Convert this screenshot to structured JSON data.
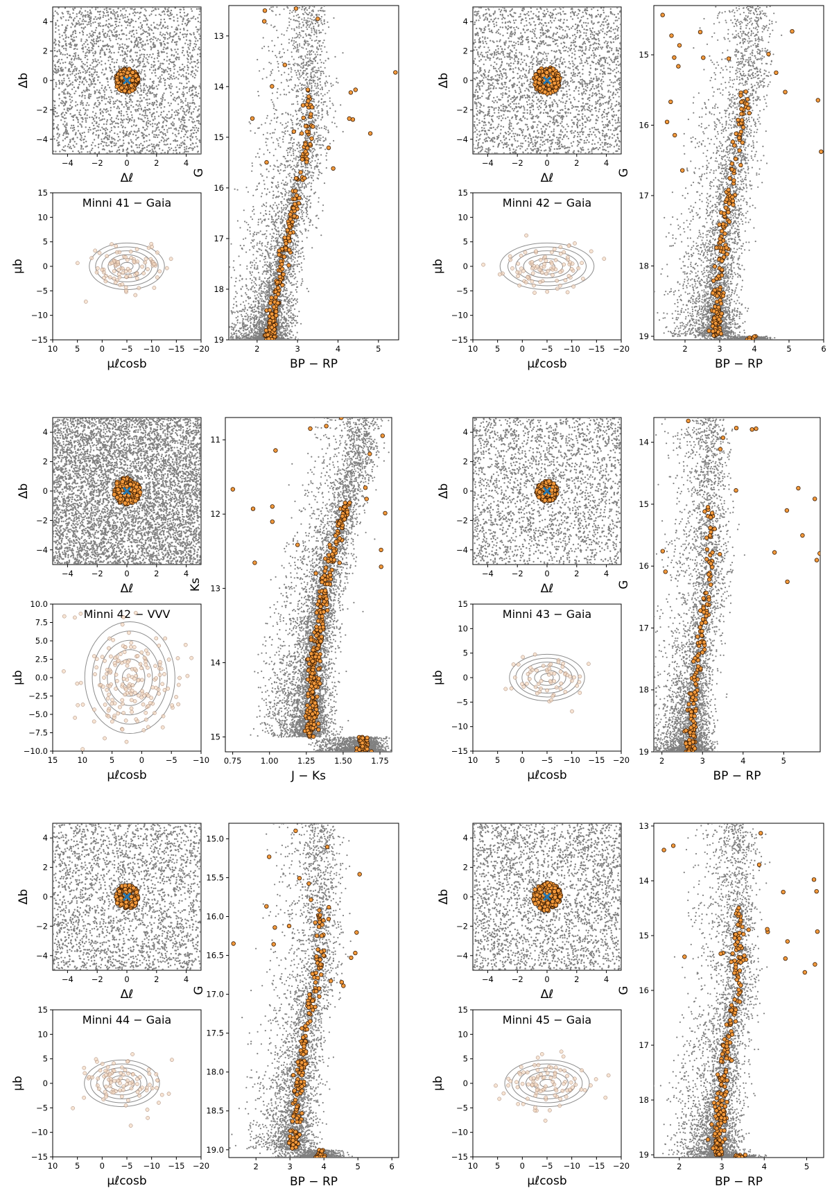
{
  "axis_labels": {
    "dl": "Δℓ",
    "db": "Δb",
    "mul": "μℓcosb",
    "mub": "μb",
    "G": "G",
    "bprp": "BP − RP",
    "Ks": "Ks",
    "jks": "J − Ks"
  },
  "colors": {
    "field_star": "#808080",
    "member_fill": "#f39a3c",
    "member_edge": "#3a1a00",
    "center_marker": "#1f77b4",
    "contour": "#8c8c8c",
    "pm_member_fill": "#f3d9c0",
    "frame": "#000000"
  },
  "chart_data": [
    {
      "id": "minni41",
      "type": "scatter",
      "title": "Minni 41 − Gaia",
      "sky": {
        "xlim": [
          -5,
          5
        ],
        "ylim": [
          -5,
          5
        ],
        "xticks": [
          -4,
          -2,
          0,
          2,
          4
        ],
        "yticks": [
          -4,
          -2,
          0,
          2,
          4
        ],
        "center": [
          0,
          0
        ],
        "cluster_radius": 0.8,
        "density": 2600
      },
      "pm": {
        "xlim": [
          10,
          -20
        ],
        "ylim": [
          -15,
          15
        ],
        "xticks": [
          10,
          5,
          0,
          -5,
          -10,
          -15,
          -20
        ],
        "yticks": [
          -15,
          -10,
          -5,
          0,
          5,
          10,
          15
        ],
        "ytick_labels": [
          "−15",
          "−10",
          "−5",
          "0",
          "5",
          "10",
          "15"
        ],
        "center": [
          -5,
          0
        ],
        "spread": [
          4,
          2.5
        ],
        "n": 90
      },
      "cmd": {
        "xlabel_key": "bprp",
        "ylabel_key": "G",
        "xlim": [
          1.3,
          5.5
        ],
        "ylim": [
          19,
          12.4
        ],
        "xticks": [
          2,
          3,
          4,
          5
        ],
        "yticks": [
          13,
          14,
          15,
          16,
          17,
          18,
          19
        ],
        "ytick_labels": [
          "13",
          "14",
          "15",
          "16",
          "17",
          "18",
          "19"
        ],
        "seq": [
          [
            2.3,
            19
          ],
          [
            2.5,
            18
          ],
          [
            2.75,
            17
          ],
          [
            3.0,
            16
          ],
          [
            3.3,
            15
          ]
        ],
        "members": 200
      }
    },
    {
      "id": "minni42g",
      "type": "scatter",
      "title": "Minni 42 − Gaia",
      "sky": {
        "xlim": [
          -5,
          5
        ],
        "ylim": [
          -5,
          5
        ],
        "xticks": [
          -4,
          -2,
          0,
          2,
          4
        ],
        "yticks": [
          -4,
          -2,
          0,
          2,
          4
        ],
        "center": [
          0,
          0
        ],
        "cluster_radius": 0.9,
        "density": 2600
      },
      "pm": {
        "xlim": [
          10,
          -20
        ],
        "ylim": [
          -15,
          15
        ],
        "xticks": [
          10,
          5,
          0,
          -5,
          -10,
          -15,
          -20
        ],
        "yticks": [
          -15,
          -10,
          -5,
          0,
          5,
          10,
          15
        ],
        "ytick_labels": [
          "−15",
          "−10",
          "−5",
          "0",
          "5",
          "10",
          "15"
        ],
        "center": [
          -5,
          0
        ],
        "spread": [
          5,
          2.5
        ],
        "n": 90
      },
      "cmd": {
        "xlabel_key": "bprp",
        "ylabel_key": "G",
        "xlim": [
          1.1,
          6
        ],
        "ylim": [
          19.05,
          14.3
        ],
        "xticks": [
          2,
          3,
          4,
          5,
          6
        ],
        "yticks": [
          15,
          16,
          17,
          18,
          19
        ],
        "ytick_labels": [
          "15",
          "16",
          "17",
          "18",
          "19"
        ],
        "seq": [
          [
            2.9,
            19
          ],
          [
            3.0,
            18
          ],
          [
            3.3,
            17
          ],
          [
            3.6,
            16
          ],
          [
            3.9,
            15
          ]
        ],
        "members": 180
      }
    },
    {
      "id": "minni42v",
      "type": "scatter",
      "title": "Minni 42 − VVV",
      "sky": {
        "xlim": [
          -5,
          5
        ],
        "ylim": [
          -5,
          5
        ],
        "xticks": [
          -4,
          -2,
          0,
          2,
          4
        ],
        "yticks": [
          -4,
          -2,
          0,
          2,
          4
        ],
        "center": [
          0,
          0
        ],
        "cluster_radius": 0.9,
        "density": 6000
      },
      "pm": {
        "xlim": [
          15,
          -10
        ],
        "ylim": [
          -10,
          10
        ],
        "xticks": [
          15,
          10,
          5,
          0,
          -5,
          -10
        ],
        "yticks": [
          -10,
          -7.5,
          -5,
          -2.5,
          0,
          2.5,
          5,
          7.5,
          10
        ],
        "ytick_labels": [
          "−10.0",
          "−7.5",
          "−5.0",
          "−2.5",
          "0.0",
          "2.5",
          "5.0",
          "7.5",
          "10.0"
        ],
        "center": [
          2,
          0
        ],
        "spread": [
          4,
          4
        ],
        "n": 180
      },
      "cmd": {
        "xlabel_key": "jks",
        "ylabel_key": "Ks",
        "xlim": [
          0.7,
          1.83
        ],
        "ylim": [
          15.2,
          10.7
        ],
        "xticks": [
          0.75,
          1.0,
          1.25,
          1.5,
          1.75
        ],
        "xtick_labels": [
          "0.75",
          "1.00",
          "1.25",
          "1.50",
          "1.75"
        ],
        "yticks": [
          11,
          12,
          13,
          14,
          15
        ],
        "ytick_labels": [
          "11",
          "12",
          "13",
          "14",
          "15"
        ],
        "seq": [
          [
            1.28,
            15
          ],
          [
            1.3,
            14
          ],
          [
            1.37,
            13
          ],
          [
            1.5,
            12
          ],
          [
            1.64,
            11
          ]
        ],
        "members": 380
      }
    },
    {
      "id": "minni43",
      "type": "scatter",
      "title": "Minni 43 − Gaia",
      "sky": {
        "xlim": [
          -5,
          5
        ],
        "ylim": [
          -5,
          5
        ],
        "xticks": [
          -4,
          -2,
          0,
          2,
          4
        ],
        "yticks": [
          -4,
          -2,
          0,
          2,
          4
        ],
        "center": [
          0,
          0
        ],
        "cluster_radius": 0.7,
        "density": 2400
      },
      "pm": {
        "xlim": [
          10,
          -20
        ],
        "ylim": [
          -15,
          15
        ],
        "xticks": [
          10,
          5,
          0,
          -5,
          -10,
          -15,
          -20
        ],
        "yticks": [
          -15,
          -10,
          -5,
          0,
          5,
          10,
          15
        ],
        "ytick_labels": [
          "−15",
          "−10",
          "−5",
          "0",
          "5",
          "10",
          "15"
        ],
        "center": [
          -5,
          0
        ],
        "spread": [
          4,
          2.5
        ],
        "n": 60
      },
      "cmd": {
        "xlabel_key": "bprp",
        "ylabel_key": "G",
        "xlim": [
          1.8,
          5.9
        ],
        "ylim": [
          19,
          13.6
        ],
        "xticks": [
          2,
          3,
          4,
          5
        ],
        "yticks": [
          14,
          15,
          16,
          17,
          18,
          19
        ],
        "ytick_labels": [
          "14",
          "15",
          "16",
          "17",
          "18",
          "19"
        ],
        "seq": [
          [
            2.7,
            19
          ],
          [
            2.8,
            18
          ],
          [
            3.0,
            17
          ],
          [
            3.2,
            16
          ]
        ],
        "members": 150
      }
    },
    {
      "id": "minni44",
      "type": "scatter",
      "title": "Minni 44 − Gaia",
      "sky": {
        "xlim": [
          -5,
          5
        ],
        "ylim": [
          -5,
          5
        ],
        "xticks": [
          -4,
          -2,
          0,
          2,
          4
        ],
        "yticks": [
          -4,
          -2,
          0,
          2,
          4
        ],
        "center": [
          0,
          0
        ],
        "cluster_radius": 0.8,
        "density": 2600
      },
      "pm": {
        "xlim": [
          10,
          -20
        ],
        "ylim": [
          -15,
          15
        ],
        "xticks": [
          10,
          5,
          0,
          -5,
          -10,
          -15,
          -20
        ],
        "yticks": [
          -15,
          -10,
          -5,
          0,
          5,
          10,
          15
        ],
        "ytick_labels": [
          "−15",
          "−10",
          "−5",
          "0",
          "5",
          "10",
          "15"
        ],
        "center": [
          -4,
          0
        ],
        "spread": [
          4,
          2.5
        ],
        "n": 90
      },
      "cmd": {
        "xlabel_key": "bprp",
        "ylabel_key": "G",
        "xlim": [
          1.2,
          6.2
        ],
        "ylim": [
          19.1,
          14.8
        ],
        "xticks": [
          2,
          3,
          4,
          5,
          6
        ],
        "yticks": [
          15,
          15.5,
          16,
          16.5,
          17,
          17.5,
          18,
          18.5,
          19
        ],
        "ytick_labels": [
          "15.0",
          "15.5",
          "16.0",
          "16.5",
          "17.0",
          "17.5",
          "18.0",
          "18.5",
          "19.0"
        ],
        "seq": [
          [
            3.1,
            19
          ],
          [
            3.2,
            18.5
          ],
          [
            3.3,
            18
          ],
          [
            3.5,
            17.5
          ],
          [
            3.7,
            17
          ],
          [
            3.9,
            16.5
          ]
        ],
        "members": 200
      }
    },
    {
      "id": "minni45",
      "type": "scatter",
      "title": "Minni 45 − Gaia",
      "sky": {
        "xlim": [
          -5,
          5
        ],
        "ylim": [
          -5,
          5
        ],
        "xticks": [
          -4,
          -2,
          0,
          2,
          4
        ],
        "yticks": [
          -4,
          -2,
          0,
          2,
          4
        ],
        "center": [
          0,
          0
        ],
        "cluster_radius": 0.95,
        "density": 2600
      },
      "pm": {
        "xlim": [
          10,
          -20
        ],
        "ylim": [
          -15,
          15
        ],
        "xticks": [
          10,
          5,
          0,
          -5,
          -10,
          -15,
          -20
        ],
        "yticks": [
          -15,
          -10,
          -5,
          0,
          5,
          10,
          15
        ],
        "ytick_labels": [
          "−15",
          "−10",
          "−5",
          "0",
          "5",
          "10",
          "15"
        ],
        "center": [
          -5,
          0
        ],
        "spread": [
          4.5,
          2.5
        ],
        "n": 90
      },
      "cmd": {
        "xlabel_key": "bprp",
        "ylabel_key": "G",
        "xlim": [
          1.4,
          5.4
        ],
        "ylim": [
          19.05,
          12.95
        ],
        "xticks": [
          2,
          3,
          4,
          5
        ],
        "yticks": [
          13,
          14,
          15,
          16,
          17,
          18,
          19
        ],
        "ytick_labels": [
          "13",
          "14",
          "15",
          "16",
          "17",
          "18",
          "19"
        ],
        "seq": [
          [
            2.9,
            19
          ],
          [
            3.0,
            18
          ],
          [
            3.1,
            17
          ],
          [
            3.4,
            16
          ]
        ],
        "members": 220
      }
    }
  ]
}
